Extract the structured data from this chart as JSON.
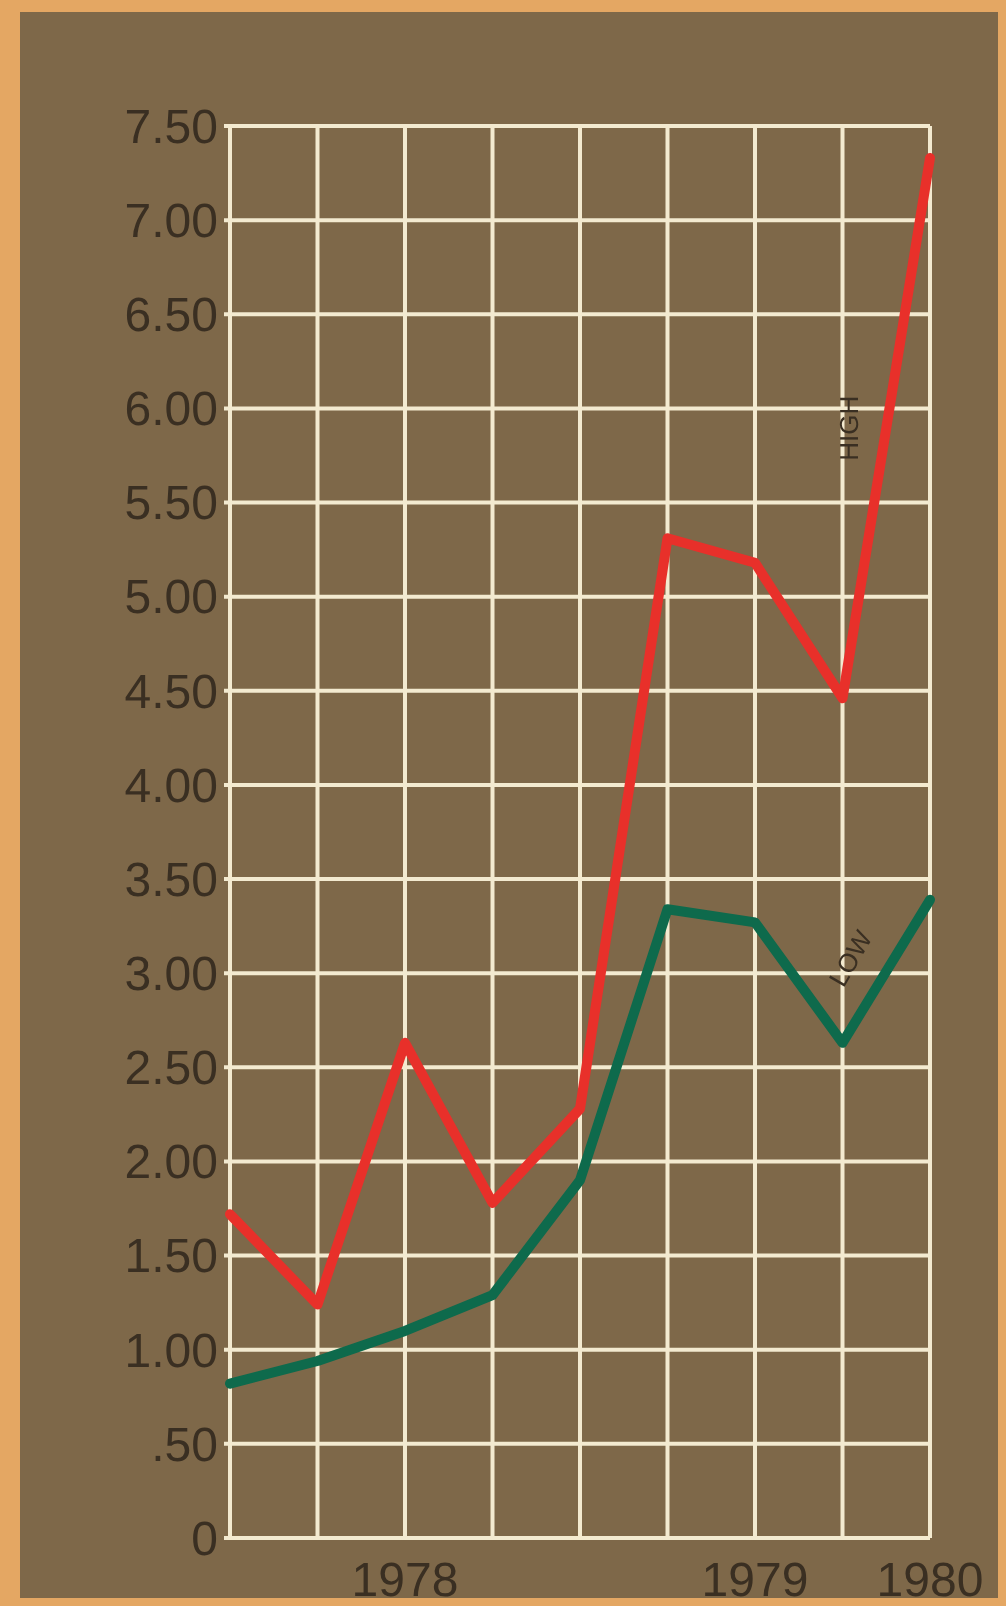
{
  "chart_data": {
    "type": "line",
    "categories": [
      null,
      null,
      "1978",
      null,
      null,
      null,
      "1979",
      null,
      "1980"
    ],
    "series": [
      {
        "name": "HIGH",
        "color": "#e8302a",
        "values": [
          1.72,
          1.24,
          2.63,
          1.78,
          2.28,
          5.31,
          5.18,
          4.46,
          7.33
        ]
      },
      {
        "name": "LOW",
        "color": "#0e6a4c",
        "values": [
          0.82,
          0.94,
          1.1,
          1.29,
          1.9,
          3.34,
          3.27,
          2.63,
          3.39
        ]
      }
    ],
    "ylim": [
      0,
      7.5
    ],
    "yticks": [
      {
        "value": 0,
        "label": "0"
      },
      {
        "value": 0.5,
        "label": ".50"
      },
      {
        "value": 1,
        "label": "1.00"
      },
      {
        "value": 1.5,
        "label": "1.50"
      },
      {
        "value": 2,
        "label": "2.00"
      },
      {
        "value": 2.5,
        "label": "2.50"
      },
      {
        "value": 3,
        "label": "3.00"
      },
      {
        "value": 3.5,
        "label": "3.50"
      },
      {
        "value": 4,
        "label": "4.00"
      },
      {
        "value": 4.5,
        "label": "4.50"
      },
      {
        "value": 5,
        "label": "5.00"
      },
      {
        "value": 5.5,
        "label": "5.50"
      },
      {
        "value": 6,
        "label": "6.00"
      },
      {
        "value": 6.5,
        "label": "6.50"
      },
      {
        "value": 7,
        "label": "7.00"
      },
      {
        "value": 7.5,
        "label": "7.50"
      }
    ],
    "grid": true,
    "line_style": "solid",
    "marker": "none"
  }
}
